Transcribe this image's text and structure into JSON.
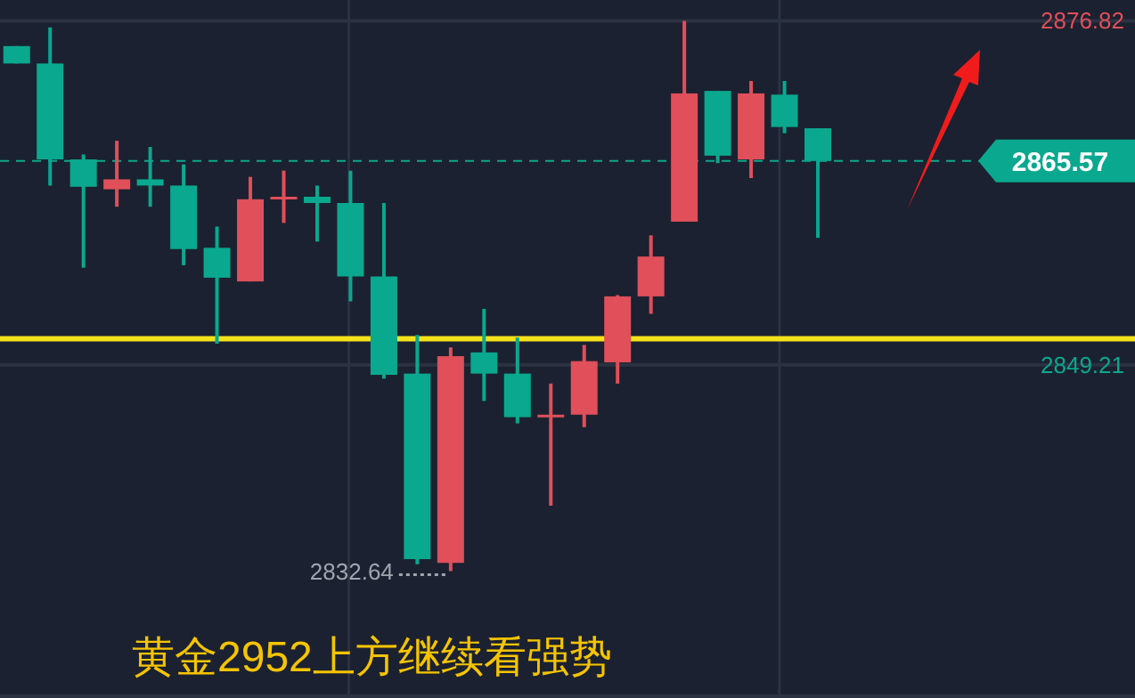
{
  "chart_data": {
    "type": "candlestick",
    "categories": [
      null,
      null,
      null,
      null,
      null,
      null,
      null,
      null,
      null,
      null,
      null,
      null,
      null,
      null,
      null,
      null,
      null,
      null,
      null,
      null,
      null,
      null,
      null,
      null,
      null,
      null,
      null,
      null,
      null,
      null,
      null,
      null,
      null,
      null
    ],
    "ohlc": [
      [
        2874.8,
        2874.8,
        2873.4,
        2873.4
      ],
      [
        2873.4,
        2876.3,
        2863.6,
        2865.7
      ],
      [
        2865.7,
        2866.1,
        2857.0,
        2863.5
      ],
      [
        2863.3,
        2867.2,
        2861.9,
        2864.1
      ],
      [
        2864.1,
        2866.7,
        2861.9,
        2863.6
      ],
      [
        2863.6,
        2865.3,
        2857.2,
        2858.5
      ],
      [
        2858.6,
        2860.3,
        2850.9,
        2856.2
      ],
      [
        2855.9,
        2864.3,
        2855.9,
        2862.5
      ],
      [
        2862.5,
        2864.8,
        2860.6,
        2862.7
      ],
      [
        2862.7,
        2863.6,
        2859.1,
        2862.2
      ],
      [
        2862.2,
        2864.8,
        2854.3,
        2856.3
      ],
      [
        2856.3,
        2862.2,
        2848.1,
        2848.4
      ],
      [
        2848.5,
        2851.6,
        2833.2,
        2833.6
      ],
      [
        2833.3,
        2850.6,
        2832.64,
        2849.9
      ],
      [
        2850.2,
        2853.7,
        2846.3,
        2848.5
      ],
      [
        2848.5,
        2851.4,
        2844.5,
        2845.0
      ],
      [
        2845.0,
        2847.7,
        2837.9,
        2845.2
      ],
      [
        2845.2,
        2850.8,
        2844.2,
        2849.5
      ],
      [
        2849.4,
        2854.8,
        2847.7,
        2854.7
      ],
      [
        2854.7,
        2859.6,
        2853.3,
        2857.9
      ],
      [
        2860.7,
        2876.82,
        2860.7,
        2871.0
      ],
      [
        2871.2,
        2871.2,
        2865.4,
        2866.0
      ],
      [
        2865.7,
        2872.0,
        2864.2,
        2871.0
      ],
      [
        2870.9,
        2872.0,
        2867.8,
        2868.3
      ],
      [
        2868.2,
        2868.2,
        2859.4,
        2865.57
      ],
      null,
      null,
      null,
      null,
      null,
      null,
      null,
      null,
      null
    ],
    "colors": [
      "#0aa88f",
      "#0aa88f",
      "#0aa88f",
      "#e04f5a",
      "#0aa88f",
      "#0aa88f",
      "#0aa88f",
      "#e04f5a",
      "#e04f5a",
      "#0aa88f",
      "#0aa88f",
      "#0aa88f",
      "#0aa88f",
      "#e04f5a",
      "#0aa88f",
      "#0aa88f",
      "#e04f5a",
      "#e04f5a",
      "#e04f5a",
      "#e04f5a",
      "#e04f5a",
      "#0aa88f",
      "#e04f5a",
      "#0aa88f",
      "#0aa88f",
      null,
      null,
      null,
      null,
      null,
      null,
      null,
      null,
      null
    ],
    "ylim": [
      2822.45,
      2878.5
    ],
    "yticks": [
      2876.82,
      2849.21
    ],
    "grid": true,
    "ref_lines": [
      {
        "axis": "y",
        "value": 2851.3,
        "label": null,
        "color": "#f5e21a",
        "line_style": "solid"
      },
      {
        "axis": "y",
        "value": 2865.57,
        "label": "2865.57",
        "color": "#0aa88f",
        "line_style": "dashed"
      }
    ],
    "annotations": [
      "2832.64",
      "黄金2952上方继续看强势"
    ]
  }
}
